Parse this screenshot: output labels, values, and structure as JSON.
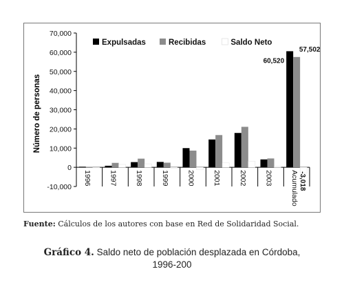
{
  "chart_data": {
    "type": "bar",
    "categories": [
      "1996",
      "1997",
      "1998",
      "1999",
      "2000",
      "2001",
      "2002",
      "2003",
      "Acumulado"
    ],
    "series": [
      {
        "name": "Expulsadas",
        "color": "#000000",
        "values": [
          300,
          800,
          2700,
          2800,
          10000,
          14500,
          17900,
          4100,
          60520
        ]
      },
      {
        "name": "Recibidas",
        "color": "#8c8c8c",
        "values": [
          200,
          2300,
          4500,
          2400,
          8700,
          16800,
          21100,
          4600,
          57502
        ]
      },
      {
        "name": "Saldo Neto",
        "color": "#ffffff",
        "values": [
          -100,
          1500,
          1800,
          -400,
          -1300,
          2300,
          3200,
          500,
          -3018
        ]
      }
    ],
    "ylabel": "Número de personas",
    "ylim": [
      -10000,
      70000
    ],
    "yticks": [
      -10000,
      0,
      10000,
      20000,
      30000,
      40000,
      50000,
      60000,
      70000
    ],
    "ytick_labels": [
      "-10,000",
      "0",
      "10,000",
      "20,000",
      "30,000",
      "40,000",
      "50,000",
      "60,000",
      "70,000"
    ],
    "legend_position": "top",
    "annotations": [
      {
        "category": "Acumulado",
        "series": "Expulsadas",
        "text": "60,520"
      },
      {
        "category": "Acumulado",
        "series": "Recibidas",
        "text": "57,502"
      },
      {
        "category": "Acumulado",
        "series": "Saldo Neto",
        "text": "-3,018"
      }
    ],
    "grid": false
  },
  "source": {
    "label": "Fuente:",
    "text": " Cálculos de los autores con base en Red de Solidaridad Social."
  },
  "caption": {
    "label": "Gráfico 4.",
    "text": " Saldo neto de población desplazada en Córdoba,",
    "line2": "1996-200"
  }
}
